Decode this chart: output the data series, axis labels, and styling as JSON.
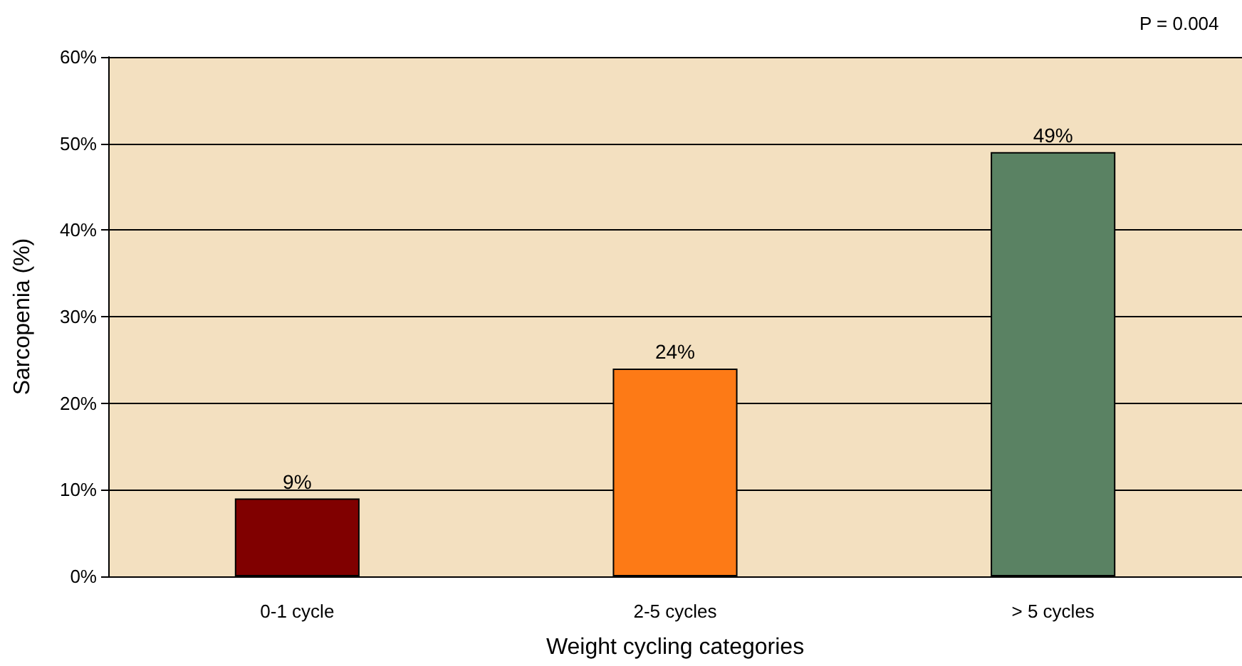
{
  "chart_data": {
    "type": "bar",
    "xlabel": "Weight cycling categories",
    "ylabel": "Sarcopenia (%)",
    "annotations": [
      "P = 0.004"
    ],
    "categories": [
      "0-1 cycle",
      "2-5 cycles",
      "> 5 cycles"
    ],
    "values": [
      9,
      24,
      49
    ],
    "colors": [
      "#800000",
      "#fd7a16",
      "#5a8263"
    ],
    "value_labels": [
      "9%",
      "24%",
      "49%"
    ],
    "ylim": [
      0,
      60
    ],
    "yticks": [
      {
        "value": 0,
        "label": "0%"
      },
      {
        "value": 10,
        "label": "10%"
      },
      {
        "value": 20,
        "label": "20%"
      },
      {
        "value": 30,
        "label": "30%"
      },
      {
        "value": 40,
        "label": "40%"
      },
      {
        "value": 50,
        "label": "50%"
      },
      {
        "value": 60,
        "label": "60%"
      }
    ],
    "grid": "y"
  }
}
